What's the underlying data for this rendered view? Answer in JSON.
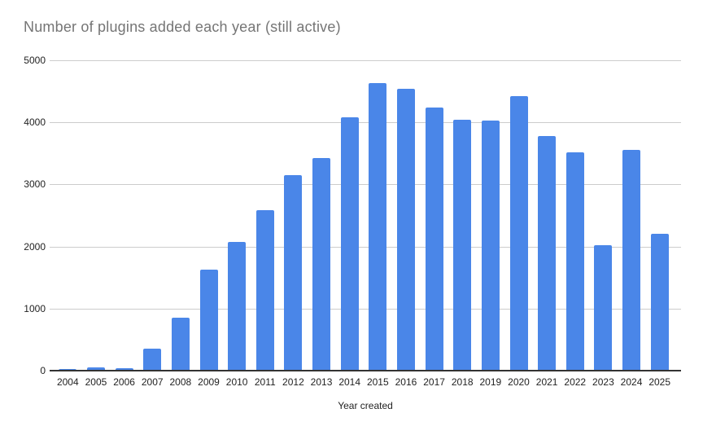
{
  "chart_data": {
    "type": "bar",
    "title": "Number of plugins added each year (still active)",
    "xlabel": "Year created",
    "ylabel": "",
    "categories": [
      "2004",
      "2005",
      "2006",
      "2007",
      "2008",
      "2009",
      "2010",
      "2011",
      "2012",
      "2013",
      "2014",
      "2015",
      "2016",
      "2017",
      "2018",
      "2019",
      "2020",
      "2021",
      "2022",
      "2023",
      "2024",
      "2025"
    ],
    "values": [
      20,
      55,
      45,
      350,
      850,
      1630,
      2075,
      2590,
      3150,
      3420,
      4080,
      4630,
      4545,
      4240,
      4045,
      4030,
      4420,
      3780,
      3520,
      2020,
      3550,
      2210
    ],
    "ylim": [
      0,
      5000
    ],
    "yticks": [
      0,
      1000,
      2000,
      3000,
      4000,
      5000
    ],
    "grid": true,
    "legend": "none",
    "colors": {
      "bar": "#4a86e8",
      "title_text": "#757575",
      "tick_text": "#222222",
      "gridline": "#cccccc",
      "axis_line": "#333333",
      "background": "#ffffff"
    }
  }
}
